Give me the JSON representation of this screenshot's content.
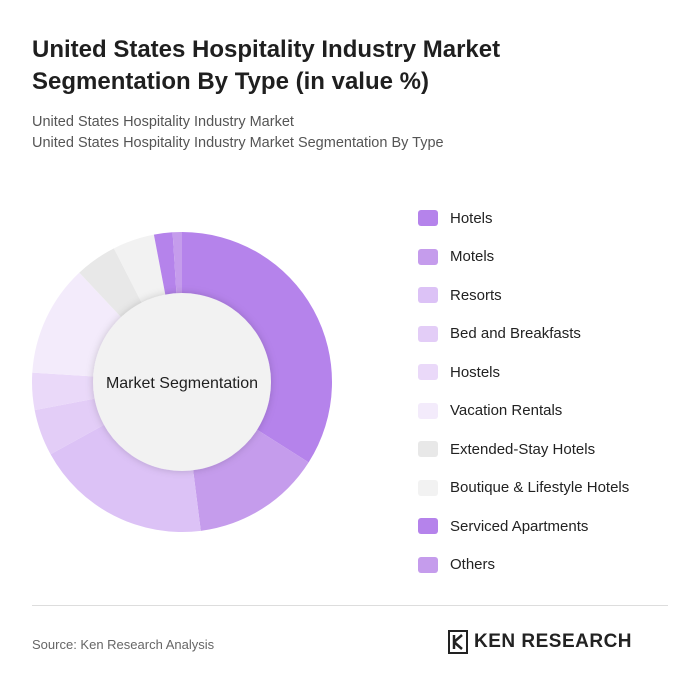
{
  "header": {
    "title": "United States Hospitality Industry Market Segmentation By Type (in value %)",
    "subtitle1": "United States Hospitality Industry Market",
    "subtitle2": "United States Hospitality Industry Market Segmentation By Type"
  },
  "chart_data": {
    "type": "pie",
    "variant": "donut",
    "center_label": "Market Segmentation",
    "legend_position": "right",
    "categories": [
      "Hotels",
      "Motels",
      "Resorts",
      "Bed and Breakfasts",
      "Hostels",
      "Vacation Rentals",
      "Extended-Stay Hotels",
      "Boutique & Lifestyle Hotels",
      "Serviced Apartments",
      "Others"
    ],
    "values": [
      34,
      14,
      19,
      5,
      4,
      12,
      4.5,
      4.5,
      2,
      1
    ],
    "colors": [
      "#b583eb",
      "#c59cec",
      "#dcc2f6",
      "#e3cdf7",
      "#ead9f9",
      "#f3ebfb",
      "#e8e8e8",
      "#f2f2f2",
      "#b583eb",
      "#c59cec"
    ]
  },
  "footer": {
    "source": "Source: Ken Research Analysis",
    "logo_text": "KEN RESEARCH"
  }
}
